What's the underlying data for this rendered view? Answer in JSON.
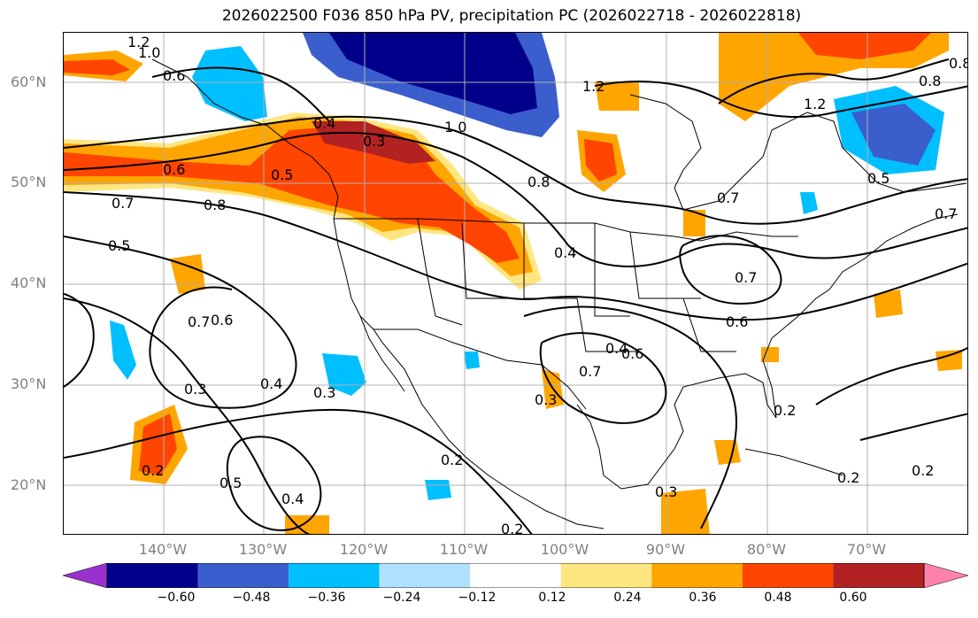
{
  "title": "2026022500 F036 850 hPa PV, precipitation PC (2026022718 - 2026022818)",
  "axes": {
    "lat_labels": [
      "60°N",
      "50°N",
      "40°N",
      "30°N",
      "20°N"
    ],
    "lon_labels": [
      "140°W",
      "130°W",
      "120°W",
      "110°W",
      "100°W",
      "90°W",
      "80°W",
      "70°W"
    ],
    "lat_range": [
      15,
      65
    ],
    "lon_range": [
      -150,
      -60
    ],
    "grid": true
  },
  "colorbar": {
    "ticks": [
      "−0.60",
      "−0.48",
      "−0.36",
      "−0.24",
      "−0.12",
      "0.12",
      "0.24",
      "0.36",
      "0.48",
      "0.60"
    ],
    "colors": [
      "#9932cc",
      "#00008b",
      "#3a5fcd",
      "#00bfff",
      "#b0e2ff",
      "#ffffff",
      "#ffe680",
      "#ffa500",
      "#ff4500",
      "#b22222",
      "#ff82ab"
    ],
    "extend": "both"
  },
  "contour_labels": [
    "1.2",
    "1.0",
    "0.6",
    "0.4",
    "0.3",
    "0.6",
    "0.5",
    "0.7",
    "0.8",
    "0.5",
    "0.7",
    "0.6",
    "0.3",
    "0.4",
    "0.3",
    "0.2",
    "0.5",
    "0.4",
    "0.2",
    "0.8",
    "0.4",
    "1.0",
    "1.2",
    "1.2",
    "0.8",
    "0.7",
    "0.5",
    "0.7",
    "0.6",
    "0.4",
    "0.7",
    "0.6",
    "0.3",
    "0.3",
    "0.2",
    "0.2",
    "0.2",
    "0.2",
    "0.7",
    "0.8"
  ]
}
